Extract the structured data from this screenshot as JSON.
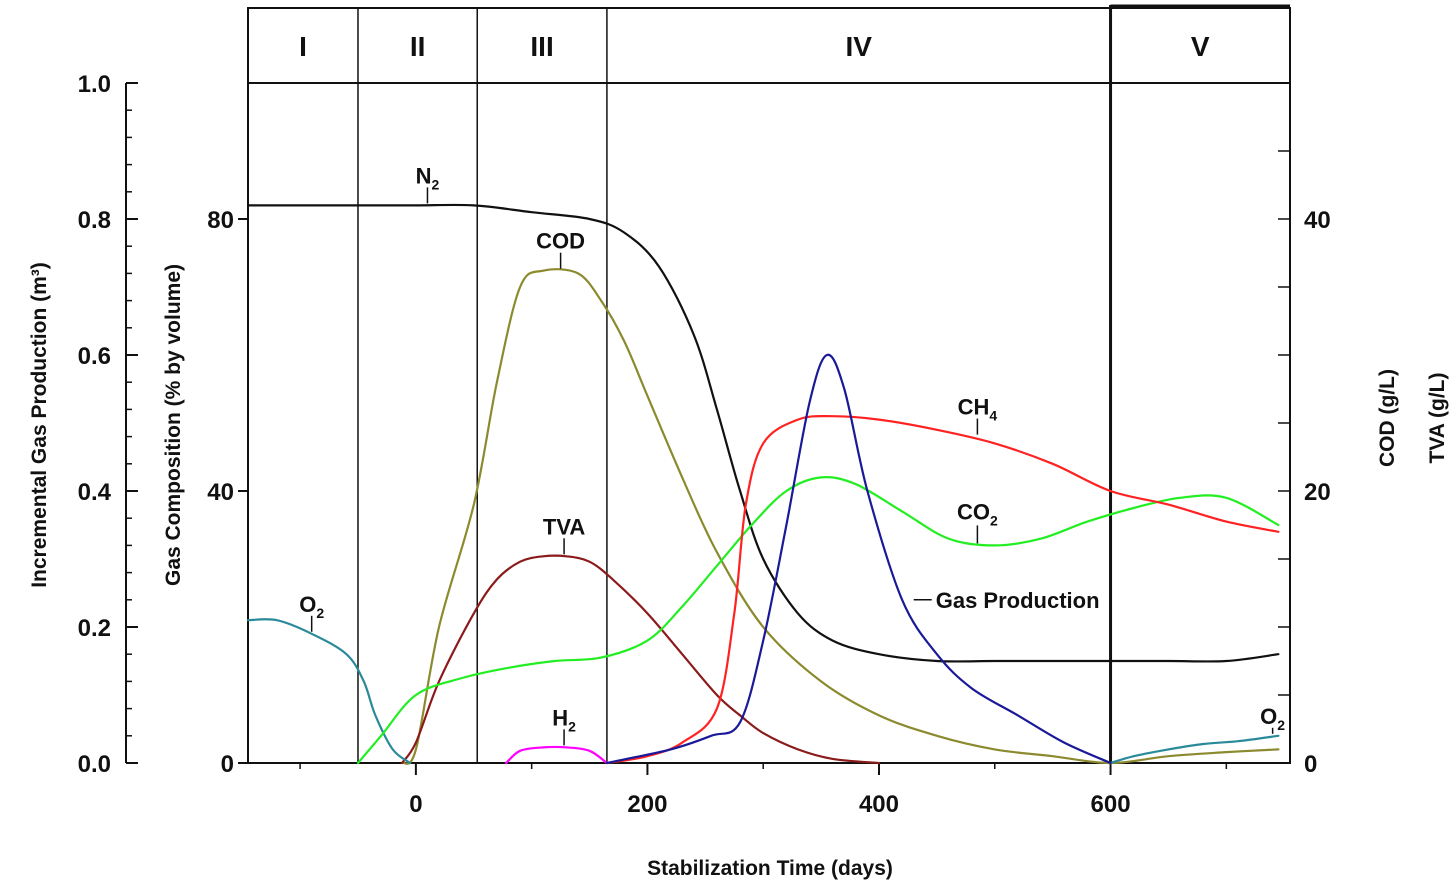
{
  "chart_data": {
    "type": "line",
    "title": "",
    "xlabel": "Stabilization Time (days)",
    "xlim": [
      -145,
      755
    ],
    "x_ticks": [
      0,
      200,
      400,
      600
    ],
    "phases": [
      {
        "label": "I",
        "x_start": -145,
        "x_end": -50
      },
      {
        "label": "II",
        "x_start": -50,
        "x_end": 53
      },
      {
        "label": "III",
        "x_start": 53,
        "x_end": 165
      },
      {
        "label": "IV",
        "x_start": 165,
        "x_end": 600
      },
      {
        "label": "V",
        "x_start": 600,
        "x_end": 755
      }
    ],
    "axes": {
      "left_outer": {
        "label": "Incremental Gas Production (m³)",
        "ylim": [
          0,
          1.0
        ],
        "ticks": [
          "0.0",
          "0.2",
          "0.4",
          "0.6",
          "0.8",
          "1.0"
        ],
        "tick_values": [
          0,
          0.2,
          0.4,
          0.6,
          0.8,
          1.0
        ]
      },
      "left_inner": {
        "label": "Gas Composition (% by volume)",
        "ylim": [
          0,
          100
        ],
        "ticks": [
          "0",
          "40",
          "80"
        ],
        "tick_values": [
          0,
          40,
          80
        ]
      },
      "right": {
        "labels": [
          "COD (g/L)",
          "TVA (g/L)"
        ],
        "ylim": [
          0,
          50
        ],
        "ticks": [
          "0",
          "20",
          "40"
        ],
        "tick_values": [
          0,
          20,
          40
        ]
      }
    },
    "series": [
      {
        "name": "N2",
        "axis": "left_inner",
        "color": "#111111",
        "x": [
          -145,
          -50,
          0,
          50,
          100,
          150,
          180,
          210,
          240,
          260,
          280,
          300,
          330,
          360,
          400,
          450,
          500,
          550,
          600,
          650,
          700,
          745
        ],
        "y": [
          82,
          82,
          82,
          82,
          81,
          80,
          78,
          73,
          63,
          52,
          40,
          30,
          22,
          18,
          16,
          15,
          15,
          15,
          15,
          15,
          15,
          16
        ]
      },
      {
        "name": "COD",
        "axis": "right",
        "color": "#8c8a2e",
        "x": [
          -12,
          0,
          20,
          50,
          70,
          90,
          110,
          140,
          160,
          180,
          200,
          230,
          260,
          300,
          350,
          400,
          450,
          500,
          550,
          600,
          650,
          700,
          745
        ],
        "y": [
          0,
          1,
          10,
          19,
          28,
          35,
          36.2,
          36,
          34,
          31,
          27,
          21,
          15.5,
          10,
          6,
          3.5,
          2,
          1,
          0.5,
          0,
          0.5,
          0.8,
          1
        ]
      },
      {
        "name": "TVA",
        "axis": "right",
        "color": "#8b1a1a",
        "x": [
          -12,
          0,
          20,
          50,
          70,
          90,
          110,
          130,
          150,
          170,
          200,
          230,
          260,
          280,
          300,
          330,
          360,
          400
        ],
        "y": [
          0,
          1.5,
          6,
          11,
          13.5,
          14.8,
          15.2,
          15.2,
          14.8,
          13.5,
          11,
          8,
          5,
          3.5,
          2.2,
          1,
          0.3,
          0
        ]
      },
      {
        "name": "H2",
        "axis": "left_inner",
        "color": "#ff00ff",
        "x": [
          78,
          90,
          110,
          130,
          150,
          165
        ],
        "y": [
          0,
          1.8,
          2.3,
          2.3,
          1.8,
          0
        ]
      },
      {
        "name": "O2",
        "axis": "left_inner",
        "color": "#2a8a9a",
        "x": [
          -145,
          -120,
          -90,
          -60,
          -45,
          -35,
          -20,
          -5
        ],
        "y": [
          21,
          21,
          19,
          16,
          12,
          7,
          2,
          0
        ]
      },
      {
        "name": "O2",
        "axis": "left_inner",
        "color": "#2a8a9a",
        "x": [
          600,
          620,
          650,
          680,
          710,
          745
        ],
        "y": [
          0,
          1,
          2,
          2.8,
          3.2,
          4
        ]
      },
      {
        "name": "CO2",
        "axis": "left_inner",
        "color": "#22ee22",
        "x": [
          -50,
          -30,
          0,
          40,
          80,
          120,
          160,
          200,
          230,
          260,
          290,
          320,
          350,
          380,
          420,
          460,
          500,
          540,
          580,
          620,
          660,
          700,
          745
        ],
        "y": [
          0,
          4,
          10,
          12.5,
          14,
          15,
          15.5,
          18,
          23,
          29,
          35,
          40,
          42,
          41,
          37,
          33,
          32,
          33,
          35.5,
          37.5,
          39,
          39,
          35
        ]
      },
      {
        "name": "CH4",
        "axis": "left_inner",
        "color": "#ff2222",
        "x": [
          165,
          200,
          230,
          260,
          275,
          285,
          300,
          330,
          360,
          400,
          450,
          500,
          550,
          600,
          650,
          700,
          745
        ],
        "y": [
          0,
          1,
          3,
          8,
          22,
          38,
          47,
          50.5,
          51,
          50.5,
          49,
          47,
          44,
          40,
          38,
          35.5,
          34
        ]
      },
      {
        "name": "Gas Production",
        "axis": "left_outer",
        "color": "#1a1a99",
        "x": [
          165,
          220,
          255,
          280,
          300,
          320,
          340,
          355,
          370,
          390,
          420,
          450,
          480,
          520,
          560,
          600
        ],
        "y": [
          0,
          0.02,
          0.04,
          0.06,
          0.18,
          0.35,
          0.53,
          0.6,
          0.55,
          0.4,
          0.24,
          0.16,
          0.11,
          0.07,
          0.03,
          0
        ]
      }
    ],
    "annotations": [
      {
        "text": "N",
        "sub": "2",
        "x": 10,
        "y": 82,
        "axis": "left_inner"
      },
      {
        "text": "COD",
        "x": 125,
        "y": 36.2,
        "axis": "right"
      },
      {
        "text": "TVA",
        "x": 128,
        "y": 15.2,
        "axis": "right"
      },
      {
        "text": "H",
        "sub": "2",
        "x": 128,
        "y": 2.3,
        "axis": "left_inner"
      },
      {
        "text": "O",
        "sub": "2",
        "x": -90,
        "y": 19,
        "axis": "left_inner"
      },
      {
        "text": "CH",
        "sub": "4",
        "x": 485,
        "y": 48,
        "axis": "left_inner"
      },
      {
        "text": "CO",
        "sub": "2",
        "x": 485,
        "y": 32,
        "axis": "left_inner"
      },
      {
        "text": "Gas Production",
        "x": 430,
        "y": 0.24,
        "axis": "left_outer"
      },
      {
        "text": "O",
        "sub": "2",
        "x": 740,
        "y": 4,
        "axis": "left_inner"
      }
    ]
  }
}
